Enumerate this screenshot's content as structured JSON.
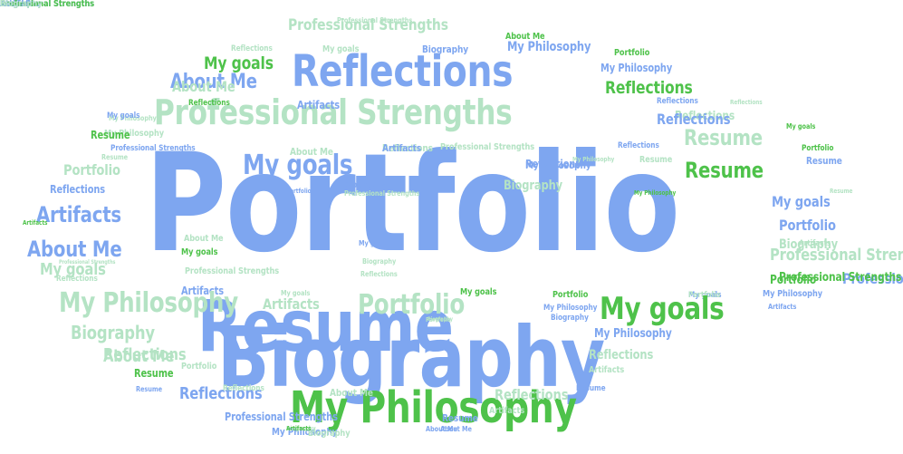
{
  "palette": {
    "blue": "#7ea6f0",
    "light": "#b4e3c4",
    "green": "#4ec24a"
  },
  "words": [
    {
      "text": "Portfolio",
      "color": "blue"
    },
    {
      "text": "Resume",
      "color": "blue"
    },
    {
      "text": "Reflections",
      "color": "blue"
    },
    {
      "text": "Professional Strengths",
      "color": "light"
    },
    {
      "text": "Professional Strengths",
      "color": "light"
    },
    {
      "text": "About Me",
      "color": "blue"
    },
    {
      "text": "Professional Strengths",
      "color": "light"
    },
    {
      "text": "About Me",
      "color": "green"
    },
    {
      "text": "Reflections",
      "color": "light"
    },
    {
      "text": "My goals",
      "color": "light"
    },
    {
      "text": "Biography",
      "color": "blue"
    },
    {
      "text": "My Philosophy",
      "color": "blue"
    },
    {
      "text": "Portfolio",
      "color": "green"
    },
    {
      "text": "My goals",
      "color": "green"
    },
    {
      "text": "My Philosophy",
      "color": "blue"
    },
    {
      "text": "About Me",
      "color": "light"
    },
    {
      "text": "Reflections",
      "color": "green"
    },
    {
      "text": "Reflections",
      "color": "blue"
    },
    {
      "text": "Reflections",
      "color": "light"
    },
    {
      "text": "Artifacts",
      "color": "blue"
    },
    {
      "text": "Reflections",
      "color": "green"
    },
    {
      "text": "My Philosophy",
      "color": "light"
    },
    {
      "text": "Reflections",
      "color": "light"
    },
    {
      "text": "Reflections",
      "color": "blue"
    },
    {
      "text": "My goals",
      "color": "blue"
    },
    {
      "text": "My Philosophy",
      "color": "light"
    },
    {
      "text": "Resume",
      "color": "green"
    },
    {
      "text": "My goals",
      "color": "green"
    },
    {
      "text": "Resume",
      "color": "light"
    },
    {
      "text": "Professional Strengths",
      "color": "blue"
    },
    {
      "text": "Reflections",
      "color": "blue"
    },
    {
      "text": "Reflections",
      "color": "light"
    },
    {
      "text": "Portfolio",
      "color": "green"
    },
    {
      "text": "About Me",
      "color": "light"
    },
    {
      "text": "Artifacts",
      "color": "blue"
    },
    {
      "text": "Professional Strengths",
      "color": "light"
    },
    {
      "text": "Resume",
      "color": "light"
    },
    {
      "text": "Reflections",
      "color": "blue"
    },
    {
      "text": "My Philosophy",
      "color": "light"
    },
    {
      "text": "My goals",
      "color": "blue"
    },
    {
      "text": "Portfolio",
      "color": "light"
    },
    {
      "text": "Resume",
      "color": "light"
    },
    {
      "text": "Resume",
      "color": "blue"
    },
    {
      "text": "My Philosophy",
      "color": "blue"
    },
    {
      "text": "Resume",
      "color": "green"
    },
    {
      "text": "Portfolio",
      "color": "blue"
    },
    {
      "text": "Biography",
      "color": "blue"
    },
    {
      "text": "Biography",
      "color": "light"
    },
    {
      "text": "Reflections",
      "color": "blue"
    },
    {
      "text": "My goals",
      "color": "blue"
    },
    {
      "text": "My Philosophy",
      "color": "green"
    },
    {
      "text": "Resume",
      "color": "light"
    },
    {
      "text": "Professional Strengths",
      "color": "light"
    },
    {
      "text": "Artifacts",
      "color": "blue"
    },
    {
      "text": "Portfolio",
      "color": "blue"
    },
    {
      "text": "Artifacts",
      "color": "green"
    },
    {
      "text": "Biography",
      "color": "light"
    },
    {
      "text": "My goals",
      "color": "blue"
    },
    {
      "text": "About Me",
      "color": "blue"
    },
    {
      "text": "About Me",
      "color": "light"
    },
    {
      "text": "Artifacts",
      "color": "light"
    },
    {
      "text": "My goals",
      "color": "green"
    },
    {
      "text": "Professional Strengths",
      "color": "light"
    },
    {
      "text": "Biography",
      "color": "light"
    },
    {
      "text": "My goals",
      "color": "light"
    },
    {
      "text": "Professional Strengths",
      "color": "light"
    },
    {
      "text": "Professional Strengths",
      "color": "light"
    },
    {
      "text": "Reflections",
      "color": "light"
    },
    {
      "text": "Reflections",
      "color": "light"
    },
    {
      "text": "Portfolio",
      "color": "green"
    },
    {
      "text": "Professional Strengths",
      "color": "blue"
    },
    {
      "text": "Professional Strengths",
      "color": "green"
    },
    {
      "text": "My goals",
      "color": "green"
    },
    {
      "text": "Artifacts",
      "color": "blue"
    },
    {
      "text": "My goals",
      "color": "blue"
    },
    {
      "text": "My Philosophy",
      "color": "light"
    },
    {
      "text": "My goals",
      "color": "light"
    },
    {
      "text": "My Philosophy",
      "color": "blue"
    },
    {
      "text": "Artifacts",
      "color": "light"
    },
    {
      "text": "Portfolio",
      "color": "green"
    },
    {
      "text": "Portfolio",
      "color": "light"
    },
    {
      "text": "Portfolio",
      "color": "light"
    },
    {
      "text": "Portfolio",
      "color": "light"
    },
    {
      "text": "My goals",
      "color": "green"
    },
    {
      "text": "Artifacts",
      "color": "blue"
    },
    {
      "text": "Biography",
      "color": "light"
    },
    {
      "text": "My Philosophy",
      "color": "blue"
    },
    {
      "text": "Biography",
      "color": "blue"
    },
    {
      "text": "Biography",
      "color": "light"
    },
    {
      "text": "My Philosophy",
      "color": "blue"
    },
    {
      "text": "Biography",
      "color": "blue"
    },
    {
      "text": "Reflections",
      "color": "light"
    },
    {
      "text": "Reflections",
      "color": "light"
    },
    {
      "text": "About Me",
      "color": "light"
    },
    {
      "text": "Portfolio",
      "color": "light"
    },
    {
      "text": "Artifacts",
      "color": "light"
    },
    {
      "text": "Resume",
      "color": "green"
    },
    {
      "text": "Resume",
      "color": "blue"
    },
    {
      "text": "My Philosophy",
      "color": "green"
    },
    {
      "text": "About Me",
      "color": "light"
    },
    {
      "text": "Reflections",
      "color": "blue"
    },
    {
      "text": "Reflections",
      "color": "light"
    },
    {
      "text": "Resume",
      "color": "blue"
    },
    {
      "text": "Reflections",
      "color": "light"
    },
    {
      "text": "Artifacts",
      "color": "light"
    },
    {
      "text": "Professional Strengths",
      "color": "blue"
    },
    {
      "text": "Resume",
      "color": "blue"
    },
    {
      "text": "My Philosophy",
      "color": "blue"
    },
    {
      "text": "Biography",
      "color": "light"
    },
    {
      "text": "About Me",
      "color": "blue"
    },
    {
      "text": "Biography",
      "color": "light"
    },
    {
      "text": "About Me",
      "color": "blue"
    },
    {
      "text": "Artifacts",
      "color": "green"
    },
    {
      "text": "Portfolio",
      "color": "light"
    },
    {
      "text": "Resume",
      "color": "blue"
    },
    {
      "text": "Artifacts",
      "color": "blue"
    },
    {
      "text": "About Me",
      "color": "blue"
    },
    {
      "text": "About Me",
      "color": "light"
    },
    {
      "text": "About Me",
      "color": "blue"
    },
    {
      "text": "Resume",
      "color": "blue"
    },
    {
      "text": "Portfolio",
      "color": "green"
    },
    {
      "text": "Professional Strengths",
      "color": "blue"
    },
    {
      "text": "Portfolio",
      "color": "blue"
    },
    {
      "text": "Professional Strengths",
      "color": "green"
    },
    {
      "text": "Biography",
      "color": "light"
    },
    {
      "text": "Biography",
      "color": "blue"
    },
    {
      "text": "Biography",
      "color": "light"
    }
  ]
}
